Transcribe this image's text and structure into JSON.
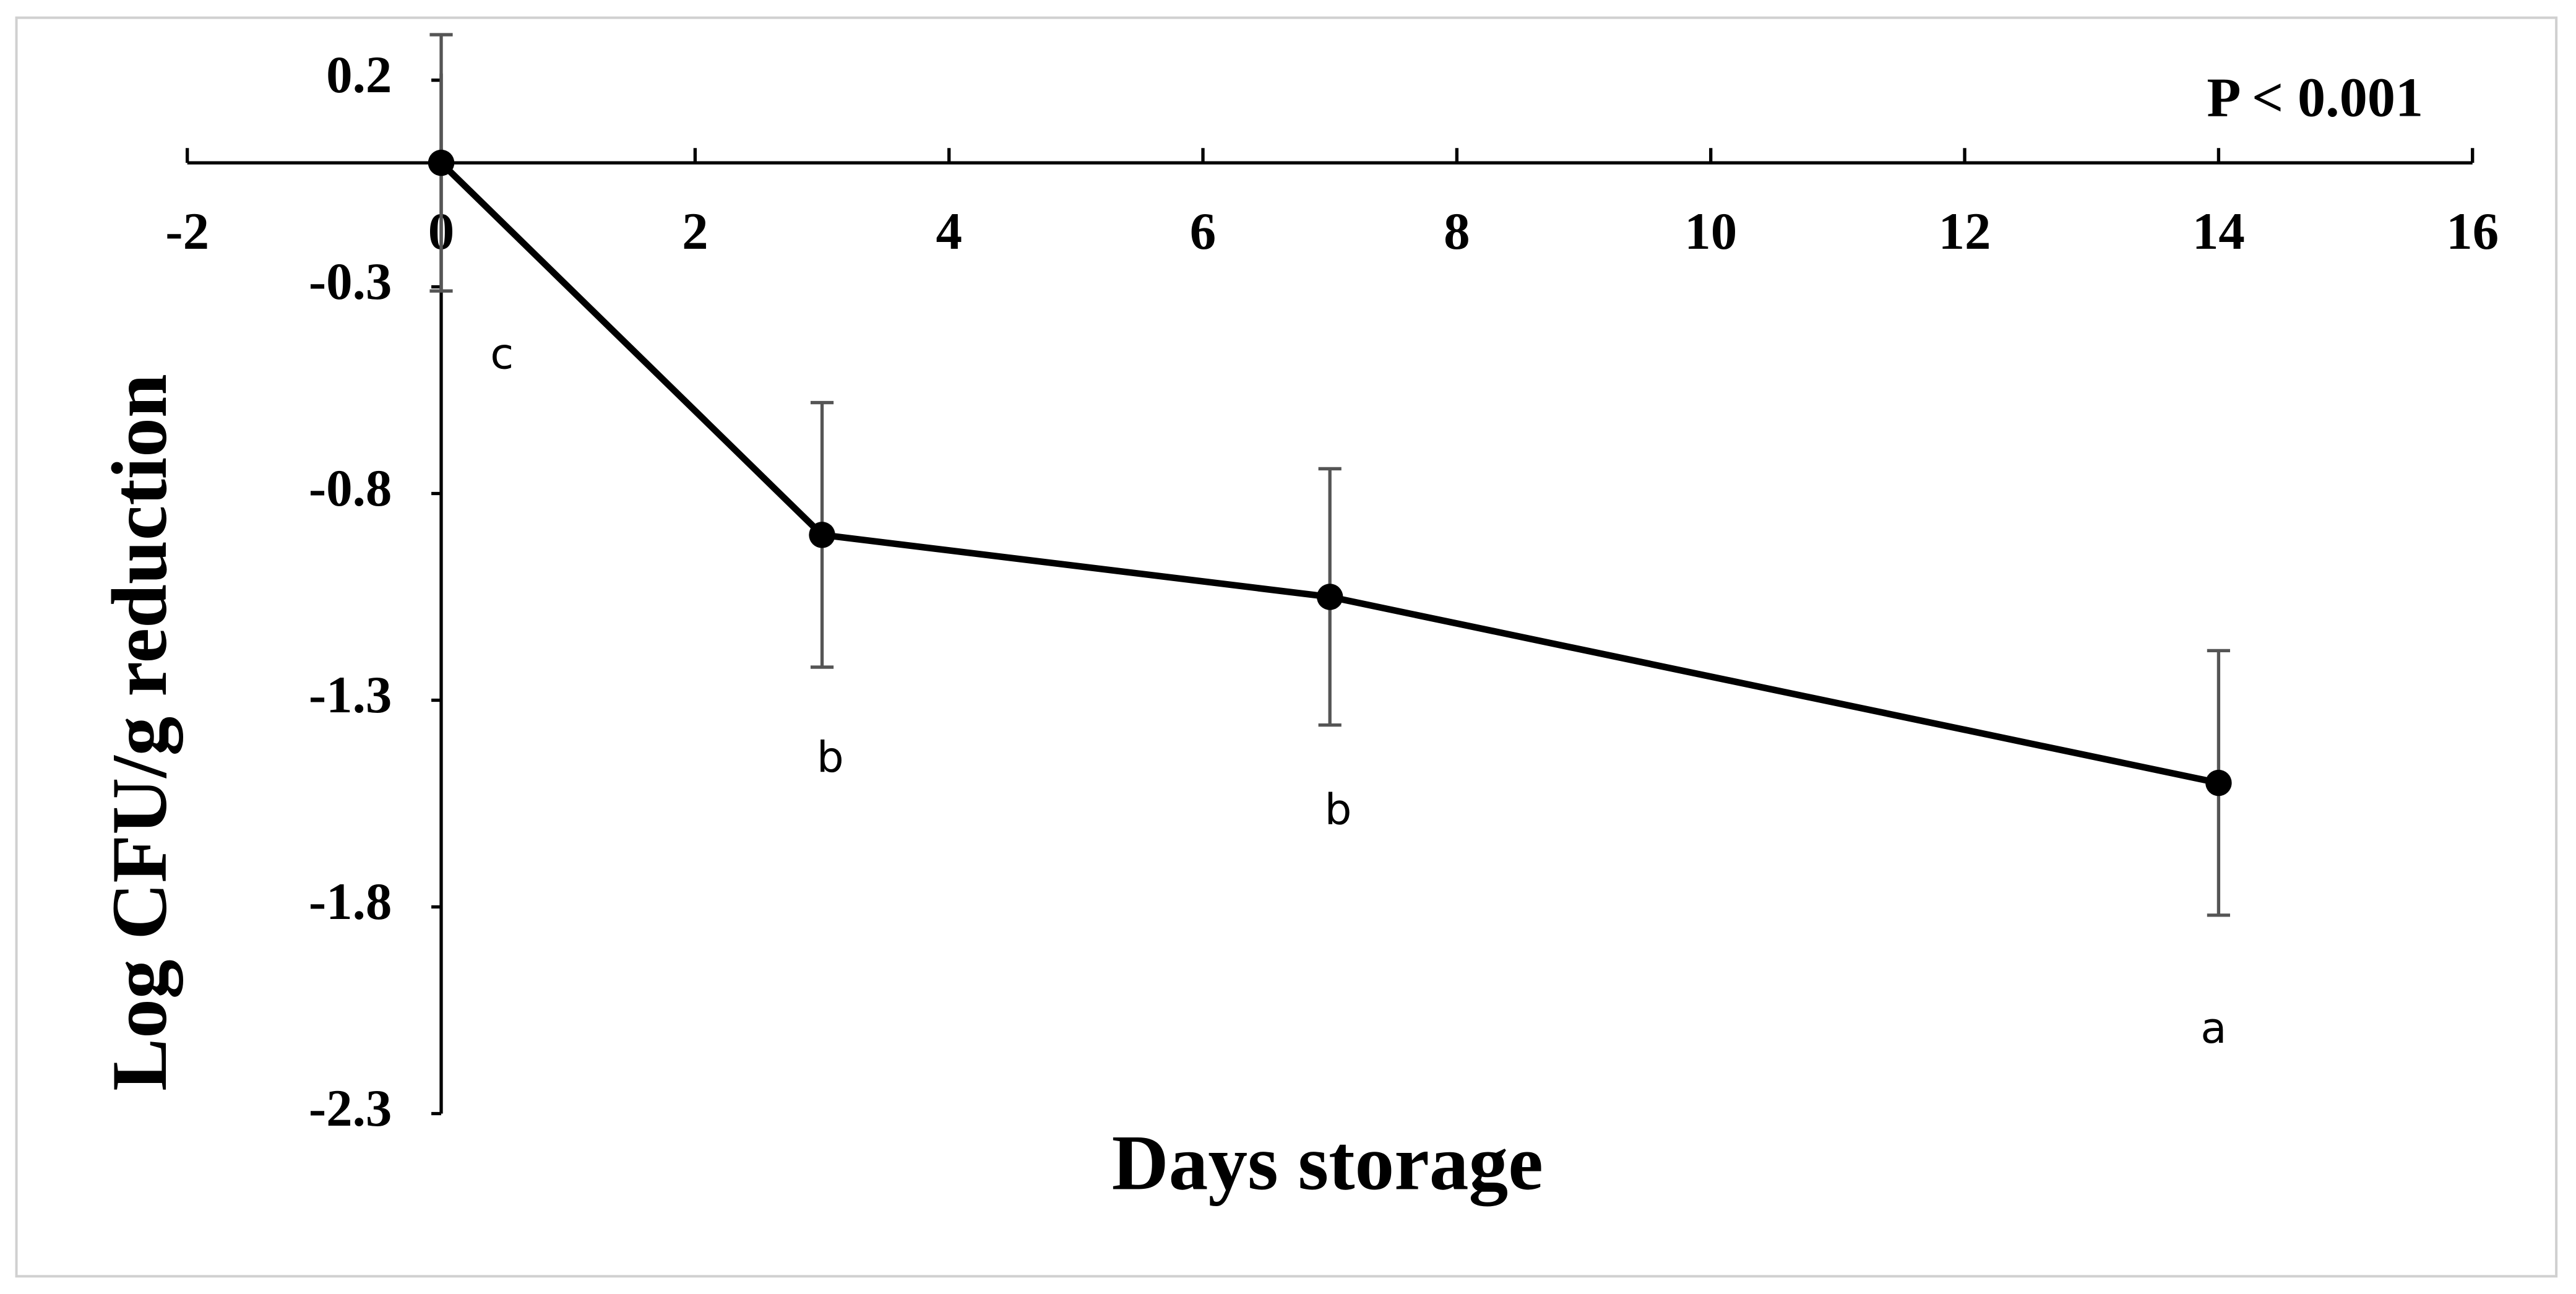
{
  "chart_data": {
    "type": "line",
    "x_label": "Days storage",
    "y_label": "Log CFU/g reduction",
    "annotation": "P < 0.001",
    "x": [
      0,
      3,
      7,
      14
    ],
    "values": [
      0,
      -0.9,
      -1.05,
      -1.5
    ],
    "errors": [
      0.31,
      0.32,
      0.31,
      0.32
    ],
    "letters": [
      "c",
      "b",
      "b",
      "a"
    ],
    "color": "#000000",
    "error_color": "#555555",
    "xlim": [
      -2,
      16
    ],
    "xticks": [
      -2,
      0,
      2,
      4,
      6,
      8,
      10,
      12,
      14,
      16
    ],
    "ylim": [
      -2.3,
      0.2
    ],
    "yticks": [
      0.2,
      -0.3,
      -0.8,
      -1.3,
      -1.8,
      -2.3
    ]
  }
}
